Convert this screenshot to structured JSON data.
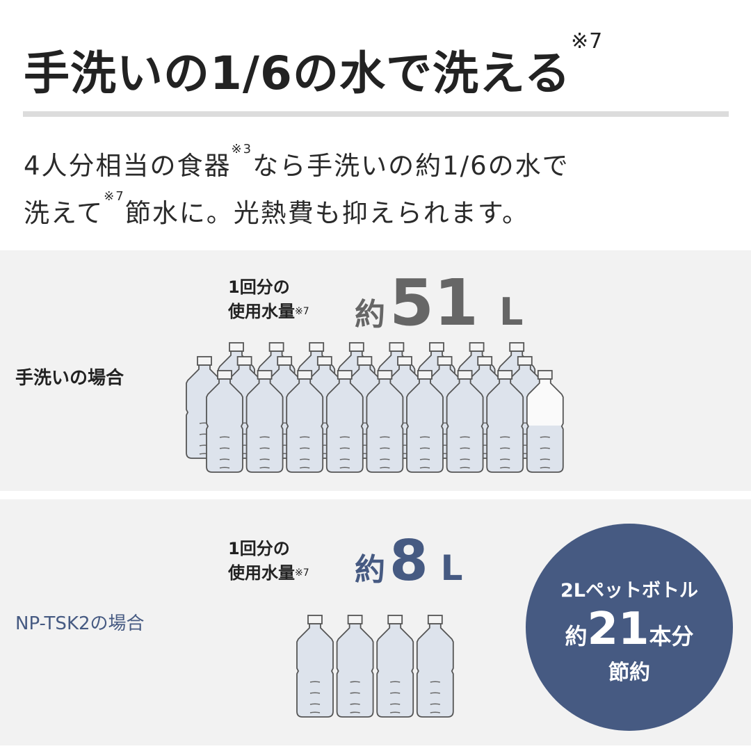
{
  "title": {
    "text": "手洗いの1/6の水で洗える",
    "note": "※7"
  },
  "description": {
    "line1_a": "4人分相当の食器",
    "line1_note": "※3",
    "line1_b": "なら手洗いの約1/6の水で",
    "line2_a": "洗えて",
    "line2_note": "※7",
    "line2_b": "節水に。光熱費も抑えられます。"
  },
  "hand_wash": {
    "label": "手洗いの場合",
    "usage_line1": "1回分の",
    "usage_line2": "使用水量",
    "usage_note": "※7",
    "prefix": "約",
    "amount": "51",
    "unit": "L",
    "bottles": 25.5,
    "color": "#666666"
  },
  "np_tsk2": {
    "label": "NP-TSK2の場合",
    "usage_line1": "1回分の",
    "usage_line2": "使用水量",
    "usage_note": "※7",
    "prefix": "約",
    "amount": "8",
    "unit": "L",
    "bottles": 4,
    "color": "#465a82"
  },
  "savings": {
    "line1": "2Lペットボトル",
    "prefix": "約",
    "amount": "21",
    "suffix": "本分",
    "line3": "節約",
    "color": "#465a82"
  }
}
